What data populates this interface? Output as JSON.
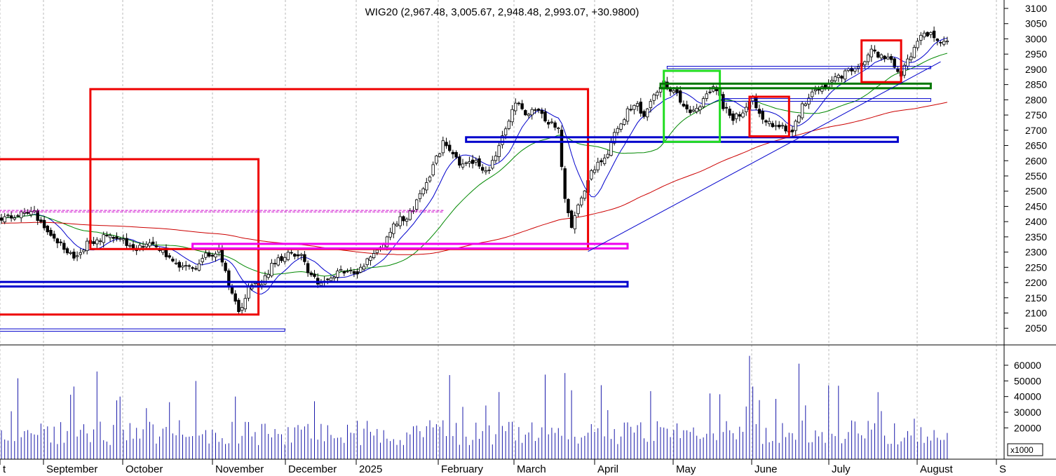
{
  "chart_data": {
    "type": "candlestick",
    "title": "WIG20 (2,967.48, 3,005.67, 2,948.48, 2,993.07, +30.9800)",
    "price_axis": {
      "ylim": [
        2000,
        3125
      ],
      "ticks": [
        3100,
        3050,
        3000,
        2950,
        2900,
        2850,
        2800,
        2750,
        2700,
        2650,
        2600,
        2550,
        2500,
        2450,
        2400,
        2350,
        2300,
        2250,
        2200,
        2150,
        2100,
        2050
      ]
    },
    "volume_axis": {
      "ylim": [
        0,
        67000
      ],
      "ticks": [
        60000,
        50000,
        40000,
        30000,
        20000
      ],
      "tick_labels": [
        "60000",
        "50000",
        "40000",
        "30000",
        "20000"
      ],
      "unit_label": "x1000"
    },
    "x_labels": [
      "t",
      "September",
      "October",
      "November",
      "December",
      "2025",
      "February",
      "March",
      "April",
      "May",
      "June",
      "July",
      "August",
      "S"
    ],
    "grid": true,
    "anchors": [
      [
        0,
        2405
      ],
      [
        4,
        2420
      ],
      [
        9,
        2440
      ],
      [
        13,
        2380
      ],
      [
        17,
        2340
      ],
      [
        22,
        2275
      ],
      [
        26,
        2330
      ],
      [
        30,
        2345
      ],
      [
        35,
        2355
      ],
      [
        40,
        2310
      ],
      [
        45,
        2330
      ],
      [
        49,
        2300
      ],
      [
        54,
        2260
      ],
      [
        58,
        2240
      ],
      [
        62,
        2290
      ],
      [
        66,
        2300
      ],
      [
        70,
        2160
      ],
      [
        72,
        2100
      ],
      [
        75,
        2185
      ],
      [
        79,
        2200
      ],
      [
        83,
        2270
      ],
      [
        87,
        2295
      ],
      [
        91,
        2285
      ],
      [
        94,
        2220
      ],
      [
        97,
        2195
      ],
      [
        100,
        2215
      ],
      [
        104,
        2240
      ],
      [
        108,
        2230
      ],
      [
        112,
        2280
      ],
      [
        116,
        2330
      ],
      [
        120,
        2400
      ],
      [
        124,
        2425
      ],
      [
        127,
        2490
      ],
      [
        131,
        2580
      ],
      [
        134,
        2660
      ],
      [
        137,
        2625
      ],
      [
        140,
        2580
      ],
      [
        144,
        2600
      ],
      [
        147,
        2560
      ],
      [
        150,
        2620
      ],
      [
        153,
        2700
      ],
      [
        156,
        2790
      ],
      [
        159,
        2760
      ],
      [
        162,
        2770
      ],
      [
        165,
        2740
      ],
      [
        169,
        2700
      ],
      [
        171,
        2480
      ],
      [
        173,
        2380
      ],
      [
        175,
        2445
      ],
      [
        178,
        2545
      ],
      [
        181,
        2585
      ],
      [
        184,
        2630
      ],
      [
        187,
        2710
      ],
      [
        190,
        2760
      ],
      [
        193,
        2780
      ],
      [
        195,
        2740
      ],
      [
        198,
        2820
      ],
      [
        201,
        2855
      ],
      [
        204,
        2830
      ],
      [
        207,
        2780
      ],
      [
        210,
        2760
      ],
      [
        213,
        2800
      ],
      [
        216,
        2850
      ],
      [
        219,
        2780
      ],
      [
        222,
        2740
      ],
      [
        225,
        2760
      ],
      [
        228,
        2800
      ],
      [
        231,
        2740
      ],
      [
        234,
        2720
      ],
      [
        237,
        2710
      ],
      [
        240,
        2700
      ],
      [
        243,
        2780
      ],
      [
        246,
        2820
      ],
      [
        249,
        2840
      ],
      [
        252,
        2870
      ],
      [
        255,
        2880
      ],
      [
        258,
        2900
      ],
      [
        261,
        2920
      ],
      [
        264,
        2960
      ],
      [
        267,
        2940
      ],
      [
        270,
        2930
      ],
      [
        273,
        2880
      ],
      [
        276,
        2950
      ],
      [
        279,
        3020
      ],
      [
        282,
        3015
      ],
      [
        285,
        2980
      ],
      [
        287,
        2993
      ]
    ],
    "moving_averages": [
      {
        "color": "#0000cc",
        "period": 10
      },
      {
        "color": "#008800",
        "period": 30
      },
      {
        "color": "#cc0000",
        "period": 120
      }
    ],
    "annotations": {
      "rectangles": [
        {
          "x0": -2,
          "x1": 78,
          "y0": 2095,
          "y1": 2605,
          "color": "#ee0000",
          "width": 3
        },
        {
          "x0": 27,
          "x1": 178,
          "y0": 2310,
          "y1": 2835,
          "color": "#ee0000",
          "width": 3
        },
        {
          "x0": 58,
          "x1": 190,
          "y0": 2312,
          "y1": 2327,
          "color": "#ee00ee",
          "width": 3
        },
        {
          "x0": -2,
          "x1": 190,
          "y0": 2187,
          "y1": 2202,
          "color": "#0000cc",
          "width": 3
        },
        {
          "x0": -2,
          "x1": 86,
          "y0": 2040,
          "y1": 2048,
          "color": "#0000cc",
          "width": 1
        },
        {
          "x0": 141,
          "x1": 272,
          "y0": 2662,
          "y1": 2677,
          "color": "#0000cc",
          "width": 3
        },
        {
          "x0": 201,
          "x1": 218,
          "y0": 2662,
          "y1": 2895,
          "color": "#22dd22",
          "width": 3
        },
        {
          "x0": 200,
          "x1": 282,
          "y0": 2838,
          "y1": 2853,
          "color": "#007700",
          "width": 3
        },
        {
          "x0": 202,
          "x1": 282,
          "y0": 2902,
          "y1": 2910,
          "color": "#0000cc",
          "width": 1
        },
        {
          "x0": 219,
          "x1": 282,
          "y0": 2795,
          "y1": 2804,
          "color": "#0000cc",
          "width": 1
        },
        {
          "x0": 227,
          "x1": 239,
          "y0": 2680,
          "y1": 2810,
          "color": "#ee0000",
          "width": 3
        },
        {
          "x0": 261,
          "x1": 273,
          "y0": 2858,
          "y1": 2995,
          "color": "#ee0000",
          "width": 3
        },
        {
          "x0": -2,
          "x1": 134,
          "y0": 2432,
          "y1": 2437,
          "color": "#cc00cc",
          "width": 1,
          "dashed": true
        }
      ],
      "trendline": {
        "from": [
          178,
          2302
        ],
        "to": [
          285,
          2925
        ],
        "color": "#0000cc"
      }
    }
  }
}
